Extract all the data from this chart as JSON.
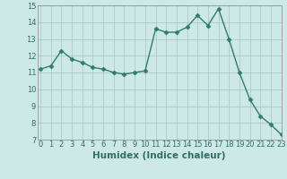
{
  "x": [
    0,
    1,
    2,
    3,
    4,
    5,
    6,
    7,
    8,
    9,
    10,
    11,
    12,
    13,
    14,
    15,
    16,
    17,
    18,
    19,
    20,
    21,
    22,
    23
  ],
  "y": [
    11.2,
    11.4,
    12.3,
    11.8,
    11.6,
    11.3,
    11.2,
    11.0,
    10.9,
    11.0,
    11.1,
    13.6,
    13.4,
    13.4,
    13.7,
    14.4,
    13.8,
    14.8,
    13.0,
    11.0,
    9.4,
    8.4,
    7.9,
    7.3
  ],
  "line_color": "#2e7d6e",
  "marker": "D",
  "marker_size": 2.5,
  "bg_color": "#cce9e5",
  "grid_color": "#b0c8c4",
  "xlabel": "Humidex (Indice chaleur)",
  "ylim": [
    7,
    15
  ],
  "xlim": [
    -0.3,
    23
  ],
  "yticks": [
    7,
    8,
    9,
    10,
    11,
    12,
    13,
    14,
    15
  ],
  "xticks": [
    0,
    1,
    2,
    3,
    4,
    5,
    6,
    7,
    8,
    9,
    10,
    11,
    12,
    13,
    14,
    15,
    16,
    17,
    18,
    19,
    20,
    21,
    22,
    23
  ],
  "tick_fontsize": 6,
  "xlabel_fontsize": 7.5,
  "line_width": 1.0
}
